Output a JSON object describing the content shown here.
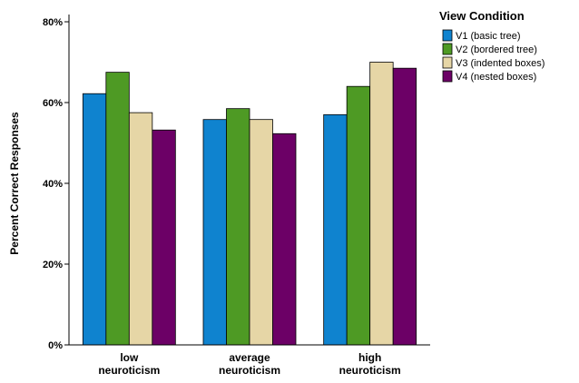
{
  "chart_data": {
    "type": "bar",
    "categories": [
      [
        "low",
        "neuroticism"
      ],
      [
        "average",
        "neuroticism"
      ],
      [
        "high",
        "neuroticism"
      ]
    ],
    "series": [
      {
        "name": "V1 (basic tree)",
        "color": "#0f83cf",
        "values": [
          62.2,
          55.8,
          57.0
        ]
      },
      {
        "name": "V2 (bordered tree)",
        "color": "#4e9a24",
        "values": [
          67.5,
          58.5,
          64.0
        ]
      },
      {
        "name": "V3 (indented boxes)",
        "color": "#e6d6a6",
        "values": [
          57.5,
          55.8,
          70.0
        ]
      },
      {
        "name": "V4 (nested boxes)",
        "color": "#6c0066",
        "values": [
          53.2,
          52.3,
          68.5
        ]
      }
    ],
    "ylabel": "Percent Correct Responses",
    "ylim": [
      0,
      80
    ],
    "yticks": [
      0,
      20,
      40,
      60,
      80
    ],
    "ytick_labels": [
      "0%",
      "20%",
      "40%",
      "60%",
      "80%"
    ],
    "legend_title": "View Condition",
    "legend_position": "top-right",
    "grid": false
  }
}
